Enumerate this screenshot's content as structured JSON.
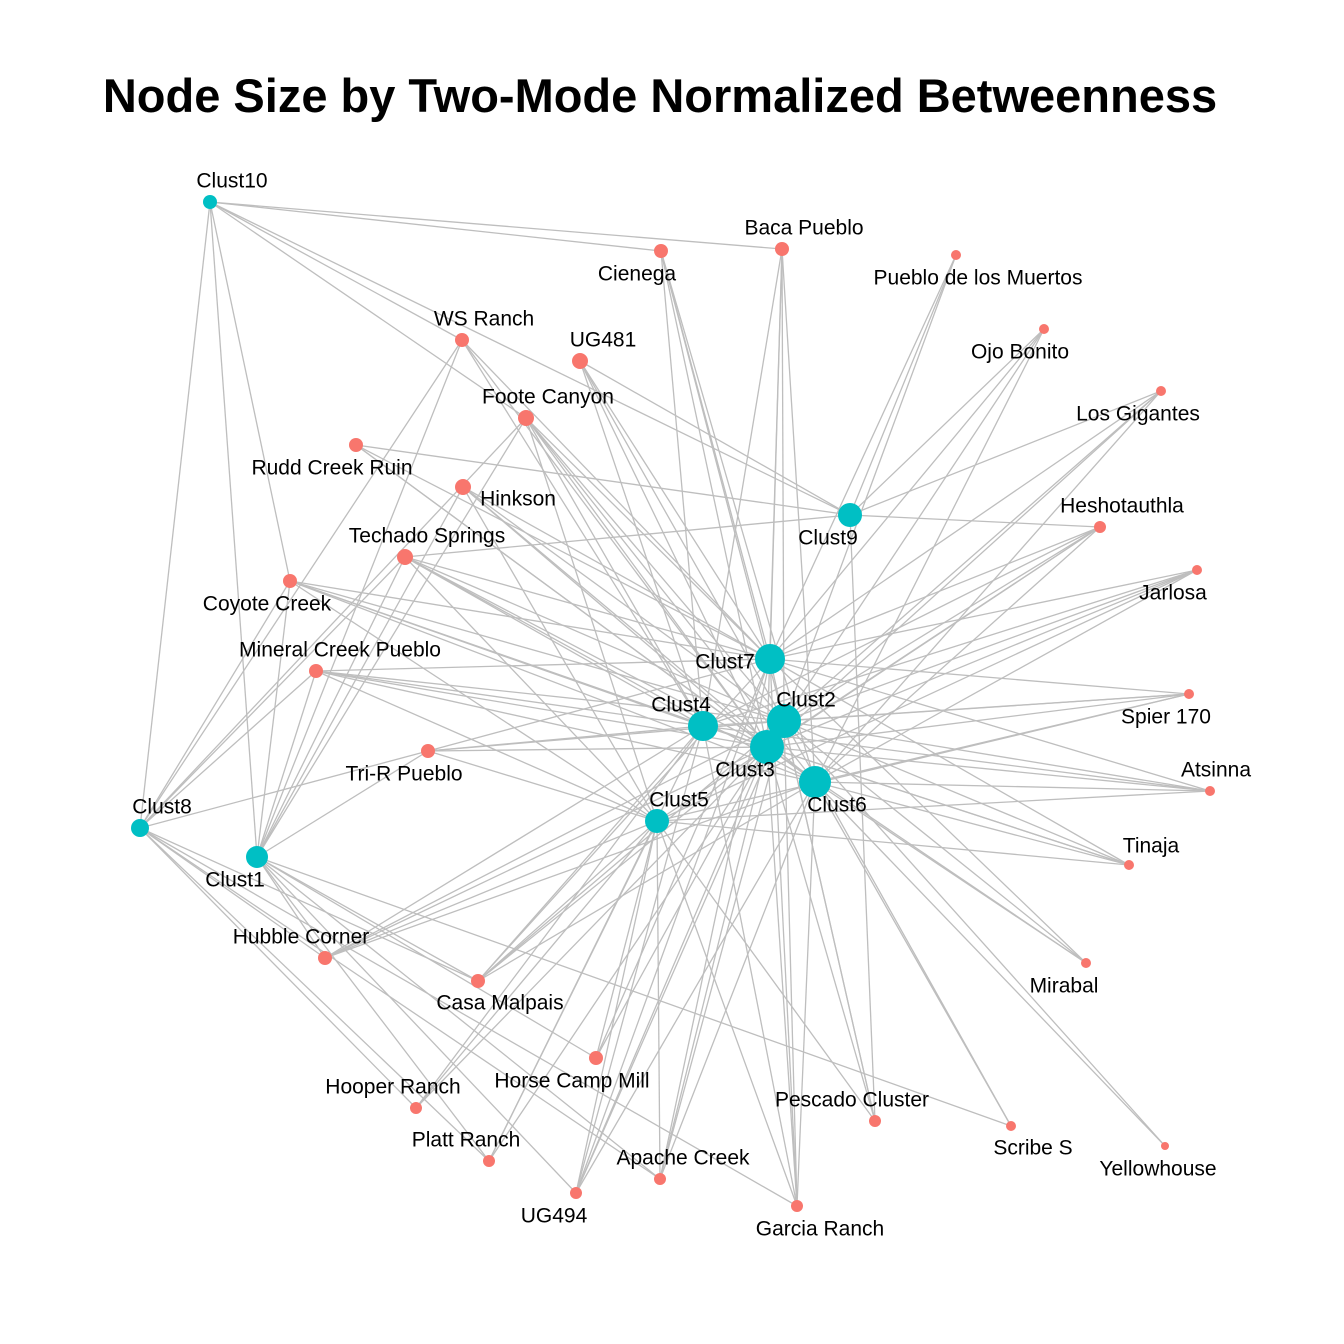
{
  "title": "Node Size by Two-Mode Normalized Betweenness",
  "colors": {
    "cluster_node": "#00BFC4",
    "site_node": "#F8766D",
    "edge": "#BEBEBE",
    "background": "#FFFFFF"
  },
  "nodes": [
    {
      "id": "Clust1",
      "label": "Clust1",
      "type": "cluster"
    },
    {
      "id": "Clust2",
      "label": "Clust2",
      "type": "cluster"
    },
    {
      "id": "Clust3",
      "label": "Clust3",
      "type": "cluster"
    },
    {
      "id": "Clust4",
      "label": "Clust4",
      "type": "cluster"
    },
    {
      "id": "Clust5",
      "label": "Clust5",
      "type": "cluster"
    },
    {
      "id": "Clust6",
      "label": "Clust6",
      "type": "cluster"
    },
    {
      "id": "Clust7",
      "label": "Clust7",
      "type": "cluster"
    },
    {
      "id": "Clust8",
      "label": "Clust8",
      "type": "cluster"
    },
    {
      "id": "Clust9",
      "label": "Clust9",
      "type": "cluster"
    },
    {
      "id": "Clust10",
      "label": "Clust10",
      "type": "cluster"
    },
    {
      "id": "BacaPueblo",
      "label": "Baca Pueblo",
      "type": "site"
    },
    {
      "id": "Cienega",
      "label": "Cienega",
      "type": "site"
    },
    {
      "id": "PuebloMuertos",
      "label": "Pueblo de los Muertos",
      "type": "site"
    },
    {
      "id": "OjoBonito",
      "label": "Ojo Bonito",
      "type": "site"
    },
    {
      "id": "WSRanch",
      "label": "WS Ranch",
      "type": "site"
    },
    {
      "id": "UG481",
      "label": "UG481",
      "type": "site"
    },
    {
      "id": "FooteCanyon",
      "label": "Foote Canyon",
      "type": "site"
    },
    {
      "id": "LosGigantes",
      "label": "Los Gigantes",
      "type": "site"
    },
    {
      "id": "RuddCreek",
      "label": "Rudd Creek Ruin",
      "type": "site"
    },
    {
      "id": "Hinkson",
      "label": "Hinkson",
      "type": "site"
    },
    {
      "id": "Heshotauthla",
      "label": "Heshotauthla",
      "type": "site"
    },
    {
      "id": "Techado",
      "label": "Techado Springs",
      "type": "site"
    },
    {
      "id": "Jarlosa",
      "label": "Jarlosa",
      "type": "site"
    },
    {
      "id": "CoyoteCreek",
      "label": "Coyote Creek",
      "type": "site"
    },
    {
      "id": "MineralCreek",
      "label": "Mineral Creek Pueblo",
      "type": "site"
    },
    {
      "id": "Spier170",
      "label": "Spier 170",
      "type": "site"
    },
    {
      "id": "TriR",
      "label": "Tri-R Pueblo",
      "type": "site"
    },
    {
      "id": "Atsinna",
      "label": "Atsinna",
      "type": "site"
    },
    {
      "id": "Tinaja",
      "label": "Tinaja",
      "type": "site"
    },
    {
      "id": "HubbleCorner",
      "label": "Hubble Corner",
      "type": "site"
    },
    {
      "id": "Mirabal",
      "label": "Mirabal",
      "type": "site"
    },
    {
      "id": "CasaMalpais",
      "label": "Casa Malpais",
      "type": "site"
    },
    {
      "id": "HorseCamp",
      "label": "Horse Camp Mill",
      "type": "site"
    },
    {
      "id": "HooperRanch",
      "label": "Hooper Ranch",
      "type": "site"
    },
    {
      "id": "PescadoCluster",
      "label": "Pescado Cluster",
      "type": "site"
    },
    {
      "id": "PlattRanch",
      "label": "Platt Ranch",
      "type": "site"
    },
    {
      "id": "ScribeS",
      "label": "Scribe S",
      "type": "site"
    },
    {
      "id": "ApacheCreek",
      "label": "Apache Creek",
      "type": "site"
    },
    {
      "id": "Yellowhouse",
      "label": "Yellowhouse",
      "type": "site"
    },
    {
      "id": "UG494",
      "label": "UG494",
      "type": "site"
    },
    {
      "id": "GarciaRanch",
      "label": "Garcia Ranch",
      "type": "site"
    }
  ],
  "edges": [
    [
      "Clust10",
      "Cienega"
    ],
    [
      "Clust10",
      "BacaPueblo"
    ],
    [
      "Clust10",
      "WSRanch"
    ],
    [
      "Clust10",
      "FooteCanyon"
    ],
    [
      "Clust10",
      "CoyoteCreek"
    ],
    [
      "Clust10",
      "Clust8"
    ],
    [
      "Clust10",
      "Clust1"
    ],
    [
      "Clust10",
      "Clust9"
    ],
    [
      "Clust7",
      "BacaPueblo"
    ],
    [
      "Clust7",
      "Cienega"
    ],
    [
      "Clust7",
      "UG481"
    ],
    [
      "Clust7",
      "FooteCanyon"
    ],
    [
      "Clust7",
      "WSRanch"
    ],
    [
      "Clust7",
      "RuddCreek"
    ],
    [
      "Clust7",
      "Hinkson"
    ],
    [
      "Clust7",
      "Techado"
    ],
    [
      "Clust7",
      "CoyoteCreek"
    ],
    [
      "Clust7",
      "MineralCreek"
    ],
    [
      "Clust7",
      "PuebloMuertos"
    ],
    [
      "Clust7",
      "OjoBonito"
    ],
    [
      "Clust7",
      "LosGigantes"
    ],
    [
      "Clust7",
      "Heshotauthla"
    ],
    [
      "Clust7",
      "Jarlosa"
    ],
    [
      "Clust7",
      "Spier170"
    ],
    [
      "Clust7",
      "Atsinna"
    ],
    [
      "Clust7",
      "Tinaja"
    ],
    [
      "Clust7",
      "Mirabal"
    ],
    [
      "Clust7",
      "PescadoCluster"
    ],
    [
      "Clust7",
      "GarciaRanch"
    ],
    [
      "Clust7",
      "ApacheCreek"
    ],
    [
      "Clust7",
      "UG494"
    ],
    [
      "Clust7",
      "HorseCamp"
    ],
    [
      "Clust7",
      "CasaMalpais"
    ],
    [
      "Clust7",
      "TriR"
    ],
    [
      "Clust2",
      "BacaPueblo"
    ],
    [
      "Clust2",
      "Cienega"
    ],
    [
      "Clust2",
      "UG481"
    ],
    [
      "Clust2",
      "FooteCanyon"
    ],
    [
      "Clust2",
      "Hinkson"
    ],
    [
      "Clust2",
      "Techado"
    ],
    [
      "Clust2",
      "PuebloMuertos"
    ],
    [
      "Clust2",
      "OjoBonito"
    ],
    [
      "Clust2",
      "LosGigantes"
    ],
    [
      "Clust2",
      "Heshotauthla"
    ],
    [
      "Clust2",
      "Jarlosa"
    ],
    [
      "Clust2",
      "Spier170"
    ],
    [
      "Clust2",
      "Atsinna"
    ],
    [
      "Clust2",
      "Tinaja"
    ],
    [
      "Clust2",
      "Mirabal"
    ],
    [
      "Clust2",
      "ScribeS"
    ],
    [
      "Clust2",
      "Yellowhouse"
    ],
    [
      "Clust2",
      "PescadoCluster"
    ],
    [
      "Clust2",
      "GarciaRanch"
    ],
    [
      "Clust2",
      "ApacheCreek"
    ],
    [
      "Clust2",
      "UG494"
    ],
    [
      "Clust2",
      "CasaMalpais"
    ],
    [
      "Clust2",
      "HubbleCorner"
    ],
    [
      "Clust2",
      "MineralCreek"
    ],
    [
      "Clust2",
      "CoyoteCreek"
    ],
    [
      "Clust2",
      "TriR"
    ],
    [
      "Clust3",
      "BacaPueblo"
    ],
    [
      "Clust3",
      "Cienega"
    ],
    [
      "Clust3",
      "WSRanch"
    ],
    [
      "Clust3",
      "UG481"
    ],
    [
      "Clust3",
      "FooteCanyon"
    ],
    [
      "Clust3",
      "RuddCreek"
    ],
    [
      "Clust3",
      "Hinkson"
    ],
    [
      "Clust3",
      "Techado"
    ],
    [
      "Clust3",
      "CoyoteCreek"
    ],
    [
      "Clust3",
      "MineralCreek"
    ],
    [
      "Clust3",
      "TriR"
    ],
    [
      "Clust3",
      "LosGigantes"
    ],
    [
      "Clust3",
      "Heshotauthla"
    ],
    [
      "Clust3",
      "Jarlosa"
    ],
    [
      "Clust3",
      "Spier170"
    ],
    [
      "Clust3",
      "Atsinna"
    ],
    [
      "Clust3",
      "Tinaja"
    ],
    [
      "Clust3",
      "Mirabal"
    ],
    [
      "Clust3",
      "PescadoCluster"
    ],
    [
      "Clust3",
      "GarciaRanch"
    ],
    [
      "Clust3",
      "ApacheCreek"
    ],
    [
      "Clust3",
      "UG494"
    ],
    [
      "Clust3",
      "HorseCamp"
    ],
    [
      "Clust3",
      "PlattRanch"
    ],
    [
      "Clust3",
      "HooperRanch"
    ],
    [
      "Clust3",
      "CasaMalpais"
    ],
    [
      "Clust3",
      "HubbleCorner"
    ],
    [
      "Clust4",
      "FooteCanyon"
    ],
    [
      "Clust4",
      "UG481"
    ],
    [
      "Clust4",
      "WSRanch"
    ],
    [
      "Clust4",
      "Techado"
    ],
    [
      "Clust4",
      "MineralCreek"
    ],
    [
      "Clust4",
      "TriR"
    ],
    [
      "Clust4",
      "CoyoteCreek"
    ],
    [
      "Clust4",
      "Heshotauthla"
    ],
    [
      "Clust4",
      "Jarlosa"
    ],
    [
      "Clust4",
      "Spier170"
    ],
    [
      "Clust4",
      "Atsinna"
    ],
    [
      "Clust4",
      "Tinaja"
    ],
    [
      "Clust4",
      "GarciaRanch"
    ],
    [
      "Clust4",
      "UG494"
    ],
    [
      "Clust4",
      "HooperRanch"
    ],
    [
      "Clust4",
      "PlattRanch"
    ],
    [
      "Clust4",
      "HubbleCorner"
    ],
    [
      "Clust4",
      "CasaMalpais"
    ],
    [
      "Clust4",
      "BacaPueblo"
    ],
    [
      "Clust4",
      "Cienega"
    ],
    [
      "Clust6",
      "BacaPueblo"
    ],
    [
      "Clust6",
      "Cienega"
    ],
    [
      "Clust6",
      "FooteCanyon"
    ],
    [
      "Clust6",
      "Hinkson"
    ],
    [
      "Clust6",
      "Techado"
    ],
    [
      "Clust6",
      "RuddCreek"
    ],
    [
      "Clust6",
      "CoyoteCreek"
    ],
    [
      "Clust6",
      "MineralCreek"
    ],
    [
      "Clust6",
      "Heshotauthla"
    ],
    [
      "Clust6",
      "Jarlosa"
    ],
    [
      "Clust6",
      "Spier170"
    ],
    [
      "Clust6",
      "Atsinna"
    ],
    [
      "Clust6",
      "Tinaja"
    ],
    [
      "Clust6",
      "Mirabal"
    ],
    [
      "Clust6",
      "ScribeS"
    ],
    [
      "Clust6",
      "Yellowhouse"
    ],
    [
      "Clust6",
      "GarciaRanch"
    ],
    [
      "Clust6",
      "UG494"
    ],
    [
      "Clust6",
      "ApacheCreek"
    ],
    [
      "Clust6",
      "HubbleCorner"
    ],
    [
      "Clust6",
      "CasaMalpais"
    ],
    [
      "Clust6",
      "LosGigantes"
    ],
    [
      "Clust6",
      "OjoBonito"
    ],
    [
      "Clust5",
      "MineralCreek"
    ],
    [
      "Clust5",
      "Techado"
    ],
    [
      "Clust5",
      "CoyoteCreek"
    ],
    [
      "Clust5",
      "TriR"
    ],
    [
      "Clust5",
      "FooteCanyon"
    ],
    [
      "Clust5",
      "Hinkson"
    ],
    [
      "Clust5",
      "Jarlosa"
    ],
    [
      "Clust5",
      "Spier170"
    ],
    [
      "Clust5",
      "Atsinna"
    ],
    [
      "Clust5",
      "Tinaja"
    ],
    [
      "Clust5",
      "HubbleCorner"
    ],
    [
      "Clust5",
      "CasaMalpais"
    ],
    [
      "Clust5",
      "HooperRanch"
    ],
    [
      "Clust5",
      "PlattRanch"
    ],
    [
      "Clust5",
      "UG494"
    ],
    [
      "Clust5",
      "ApacheCreek"
    ],
    [
      "Clust5",
      "HorseCamp"
    ],
    [
      "Clust5",
      "GarciaRanch"
    ],
    [
      "Clust5",
      "PescadoCluster"
    ],
    [
      "Clust5",
      "Heshotauthla"
    ],
    [
      "Clust9",
      "RuddCreek"
    ],
    [
      "Clust9",
      "UG481"
    ],
    [
      "Clust9",
      "PuebloMuertos"
    ],
    [
      "Clust9",
      "OjoBonito"
    ],
    [
      "Clust9",
      "LosGigantes"
    ],
    [
      "Clust9",
      "Heshotauthla"
    ],
    [
      "Clust9",
      "PescadoCluster"
    ],
    [
      "Clust9",
      "Techado"
    ],
    [
      "Clust1",
      "WSRanch"
    ],
    [
      "Clust1",
      "FooteCanyon"
    ],
    [
      "Clust1",
      "Hinkson"
    ],
    [
      "Clust1",
      "Techado"
    ],
    [
      "Clust1",
      "CoyoteCreek"
    ],
    [
      "Clust1",
      "MineralCreek"
    ],
    [
      "Clust1",
      "TriR"
    ],
    [
      "Clust1",
      "HubbleCorner"
    ],
    [
      "Clust1",
      "CasaMalpais"
    ],
    [
      "Clust1",
      "HorseCamp"
    ],
    [
      "Clust1",
      "PlattRanch"
    ],
    [
      "Clust1",
      "UG494"
    ],
    [
      "Clust1",
      "ScribeS"
    ],
    [
      "Clust1",
      "ApacheCreek"
    ],
    [
      "Clust8",
      "WSRanch"
    ],
    [
      "Clust8",
      "FooteCanyon"
    ],
    [
      "Clust8",
      "Techado"
    ],
    [
      "Clust8",
      "MineralCreek"
    ],
    [
      "Clust8",
      "CoyoteCreek"
    ],
    [
      "Clust8",
      "TriR"
    ],
    [
      "Clust8",
      "HubbleCorner"
    ],
    [
      "Clust8",
      "HooperRanch"
    ],
    [
      "Clust8",
      "PlattRanch"
    ],
    [
      "Clust8",
      "CasaMalpais"
    ],
    [
      "Clust8",
      "GarciaRanch"
    ],
    [
      "Clust8",
      "ApacheCreek"
    ]
  ]
}
